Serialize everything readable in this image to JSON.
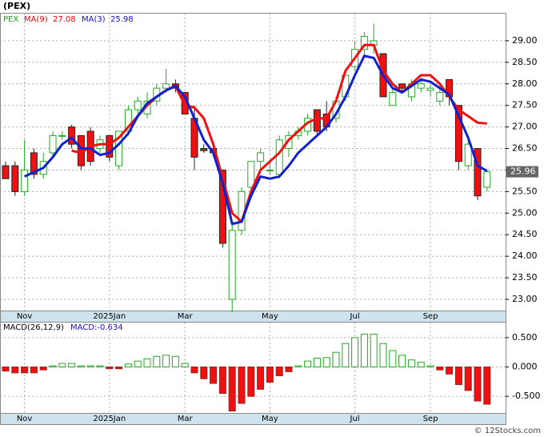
{
  "watermark": "© 12Stocks.com",
  "chart_data": [
    {
      "type": "candlestick",
      "title": "(PEX)",
      "ticker": "PEX",
      "categories": [
        null,
        null,
        "Nov",
        null,
        null,
        null,
        null,
        null,
        null,
        null,
        null,
        "2025Jan",
        null,
        null,
        null,
        null,
        null,
        null,
        null,
        "Mar",
        null,
        null,
        null,
        null,
        null,
        null,
        null,
        null,
        "May",
        null,
        null,
        null,
        null,
        null,
        null,
        null,
        null,
        "Jul",
        null,
        null,
        null,
        null,
        null,
        null,
        null,
        "Sep",
        null,
        null,
        null,
        null,
        null,
        null
      ],
      "open": [
        26.1,
        26.1,
        25.5,
        26.4,
        25.9,
        26.4,
        26.8,
        27.0,
        26.8,
        26.9,
        26.5,
        26.8,
        26.1,
        26.9,
        27.4,
        27.3,
        27.6,
        27.9,
        28.0,
        27.8,
        27.2,
        26.5,
        26.5,
        26.0,
        23.0,
        24.6,
        25.6,
        26.2,
        26.0,
        25.9,
        26.5,
        26.8,
        26.9,
        27.4,
        27.3,
        27.2,
        27.7,
        28.4,
        28.8,
        28.9,
        28.7,
        27.5,
        28.0,
        27.7,
        27.9,
        27.85,
        27.6,
        28.1,
        27.5,
        26.1,
        26.5,
        25.6
      ],
      "high": [
        26.2,
        26.2,
        26.7,
        26.5,
        26.4,
        26.9,
        26.9,
        27.05,
        26.8,
        27.0,
        26.8,
        26.8,
        26.9,
        27.5,
        27.7,
        27.8,
        28.0,
        28.35,
        28.1,
        27.8,
        27.5,
        26.6,
        26.6,
        26.0,
        24.8,
        25.6,
        26.2,
        26.5,
        26.2,
        26.8,
        26.9,
        27.0,
        27.3,
        27.4,
        27.6,
        27.7,
        28.2,
        29.0,
        29.2,
        29.4,
        28.7,
        27.9,
        28.0,
        28.1,
        28.1,
        28.0,
        28.0,
        28.1,
        27.5,
        26.7,
        26.5,
        26.0
      ],
      "low": [
        25.8,
        25.4,
        25.4,
        25.8,
        25.8,
        26.3,
        26.7,
        26.5,
        26.0,
        26.1,
        26.4,
        26.2,
        26.0,
        26.8,
        27.2,
        27.2,
        27.5,
        27.8,
        27.8,
        27.3,
        26.0,
        26.4,
        26.3,
        24.2,
        22.7,
        24.5,
        25.5,
        26.0,
        25.9,
        25.8,
        26.3,
        26.7,
        26.8,
        26.8,
        26.9,
        27.1,
        27.6,
        28.3,
        28.6,
        28.7,
        27.7,
        27.5,
        27.8,
        27.6,
        27.8,
        27.7,
        27.5,
        27.5,
        26.0,
        26.0,
        25.3,
        25.5
      ],
      "close": [
        25.8,
        25.5,
        26.0,
        25.9,
        26.2,
        26.8,
        26.8,
        26.6,
        26.1,
        26.2,
        26.7,
        26.3,
        26.9,
        27.4,
        27.6,
        27.6,
        27.9,
        28.0,
        27.9,
        27.3,
        26.3,
        26.45,
        26.4,
        24.3,
        24.6,
        25.5,
        26.2,
        26.4,
        26.0,
        26.7,
        26.8,
        26.9,
        27.2,
        26.9,
        27.0,
        27.6,
        28.2,
        28.8,
        29.1,
        29.0,
        27.7,
        27.8,
        27.9,
        28.0,
        28.0,
        27.9,
        27.8,
        27.7,
        26.2,
        26.6,
        25.4,
        25.96
      ],
      "up_color": "#22aa22",
      "down_color": "#ee1111",
      "series": [
        {
          "name": "MA(9)",
          "color": "#ee1111",
          "legend_value": "27.08",
          "values": [
            null,
            null,
            null,
            null,
            null,
            null,
            null,
            26.45,
            26.4,
            26.55,
            26.6,
            26.6,
            26.75,
            27.0,
            27.25,
            27.5,
            27.7,
            27.85,
            27.95,
            27.5,
            27.45,
            27.2,
            26.6,
            25.8,
            25.0,
            24.8,
            25.5,
            26.0,
            26.2,
            26.4,
            26.7,
            26.9,
            27.1,
            27.2,
            27.2,
            27.6,
            28.3,
            28.6,
            28.9,
            28.9,
            28.3,
            28.0,
            27.8,
            28.0,
            28.2,
            28.2,
            28.0,
            27.7,
            27.4,
            27.25,
            27.1,
            27.08
          ]
        },
        {
          "name": "MA(3)",
          "color": "#1122cc",
          "legend_value": "25.98",
          "values": [
            null,
            null,
            25.85,
            25.95,
            26.05,
            26.3,
            26.6,
            26.75,
            26.5,
            26.5,
            26.35,
            26.4,
            26.6,
            26.85,
            27.25,
            27.55,
            27.7,
            27.85,
            27.95,
            27.7,
            27.2,
            26.7,
            26.4,
            25.7,
            24.75,
            24.8,
            25.4,
            25.85,
            25.8,
            25.85,
            26.1,
            26.4,
            26.6,
            26.8,
            27.0,
            27.3,
            27.7,
            28.2,
            28.65,
            28.6,
            28.2,
            27.9,
            27.8,
            27.95,
            28.1,
            28.05,
            27.9,
            27.75,
            27.25,
            26.75,
            26.1,
            25.98
          ]
        }
      ],
      "last_price": 25.96,
      "ylim": [
        22.74,
        29.63
      ],
      "yticks": [
        {
          "value": 23,
          "label": "23.00"
        },
        {
          "value": 23.5,
          "label": "23.50"
        },
        {
          "value": 24,
          "label": "24.00"
        },
        {
          "value": 24.5,
          "label": "24.50"
        },
        {
          "value": 25,
          "label": "25.00"
        },
        {
          "value": 25.5,
          "label": "25.50"
        },
        {
          "value": 26,
          "label": "26.00"
        },
        {
          "value": 26.5,
          "label": "26.50"
        },
        {
          "value": 27,
          "label": "27.00"
        },
        {
          "value": 27.5,
          "label": "27.50"
        },
        {
          "value": 28,
          "label": "28.00"
        },
        {
          "value": 28.5,
          "label": "28.50"
        },
        {
          "value": 29,
          "label": "29.00"
        }
      ],
      "grid": true
    },
    {
      "type": "bar",
      "title": "MACD(26,12,9)",
      "legend": "MACD:-0.634",
      "categories": [
        null,
        null,
        "Nov",
        null,
        null,
        null,
        null,
        null,
        null,
        null,
        null,
        "2025Jan",
        null,
        null,
        null,
        null,
        null,
        null,
        null,
        "Mar",
        null,
        null,
        null,
        null,
        null,
        null,
        null,
        null,
        "May",
        null,
        null,
        null,
        null,
        null,
        null,
        null,
        null,
        "Jul",
        null,
        null,
        null,
        null,
        null,
        null,
        null,
        "Sep",
        null,
        null,
        null,
        null,
        null,
        null
      ],
      "values": [
        -0.07,
        -0.1,
        -0.1,
        -0.1,
        -0.05,
        0.02,
        0.06,
        0.06,
        0.02,
        0.02,
        0.02,
        -0.03,
        -0.03,
        0.05,
        0.1,
        0.14,
        0.18,
        0.2,
        0.18,
        0.06,
        -0.1,
        -0.2,
        -0.28,
        -0.45,
        -0.75,
        -0.62,
        -0.5,
        -0.38,
        -0.26,
        -0.15,
        -0.08,
        0.02,
        0.1,
        0.15,
        0.16,
        0.25,
        0.4,
        0.5,
        0.56,
        0.56,
        0.4,
        0.28,
        0.2,
        0.12,
        0.08,
        0.02,
        -0.05,
        -0.12,
        -0.3,
        -0.4,
        -0.58,
        -0.634
      ],
      "up_color": "#22aa22",
      "down_color": "#ee1111",
      "ylim": [
        -0.784,
        0.757
      ],
      "yticks": [
        {
          "value": -0.5,
          "label": "-0.500"
        },
        {
          "value": 0,
          "label": "0.000"
        },
        {
          "value": 0.5,
          "label": "0.500"
        }
      ],
      "grid": true
    }
  ]
}
